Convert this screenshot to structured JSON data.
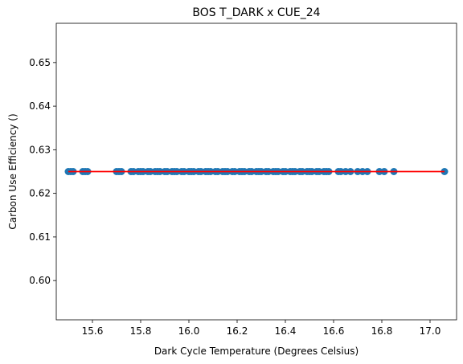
{
  "chart_data": {
    "type": "scatter",
    "title": "BOS T_DARK x CUE_24",
    "xlabel": "Dark Cycle Temperature (Degrees Celsius)",
    "ylabel": "Carbon Use Efficiency ()",
    "xlim": [
      15.45,
      17.11
    ],
    "ylim": [
      0.591,
      0.659
    ],
    "xticks": [
      15.6,
      15.8,
      16.0,
      16.2,
      16.4,
      16.6,
      16.8,
      17.0
    ],
    "xtick_labels": [
      "15.6",
      "15.8",
      "16.0",
      "16.2",
      "16.4",
      "16.6",
      "16.8",
      "17.0"
    ],
    "yticks": [
      0.6,
      0.61,
      0.62,
      0.63,
      0.64,
      0.65
    ],
    "ytick_labels": [
      "0.60",
      "0.61",
      "0.62",
      "0.63",
      "0.64",
      "0.65"
    ],
    "grid": false,
    "legend": "none",
    "colors": {
      "points": "#1f77b4",
      "fit_line": "#ff0000"
    },
    "series": [
      {
        "kind": "points",
        "x": [
          15.5,
          15.51,
          15.52,
          15.56,
          15.57,
          15.58,
          15.7,
          15.71,
          15.72,
          15.76,
          15.77,
          15.79,
          15.8,
          15.81,
          15.83,
          15.84,
          15.86,
          15.87,
          15.88,
          15.9,
          15.91,
          15.93,
          15.94,
          15.95,
          15.97,
          15.98,
          16.0,
          16.01,
          16.02,
          16.04,
          16.05,
          16.07,
          16.08,
          16.09,
          16.11,
          16.12,
          16.14,
          16.15,
          16.16,
          16.18,
          16.19,
          16.21,
          16.22,
          16.23,
          16.25,
          16.26,
          16.28,
          16.29,
          16.3,
          16.32,
          16.33,
          16.35,
          16.36,
          16.37,
          16.39,
          16.4,
          16.42,
          16.43,
          16.44,
          16.46,
          16.47,
          16.49,
          16.5,
          16.51,
          16.53,
          16.54,
          16.56,
          16.57,
          16.58,
          16.62,
          16.63,
          16.65,
          16.67,
          16.7,
          16.72,
          16.74,
          16.79,
          16.81,
          16.85,
          17.06
        ],
        "y": [
          0.625,
          0.625,
          0.625,
          0.625,
          0.625,
          0.625,
          0.625,
          0.625,
          0.625,
          0.625,
          0.625,
          0.625,
          0.625,
          0.625,
          0.625,
          0.625,
          0.625,
          0.625,
          0.625,
          0.625,
          0.625,
          0.625,
          0.625,
          0.625,
          0.625,
          0.625,
          0.625,
          0.625,
          0.625,
          0.625,
          0.625,
          0.625,
          0.625,
          0.625,
          0.625,
          0.625,
          0.625,
          0.625,
          0.625,
          0.625,
          0.625,
          0.625,
          0.625,
          0.625,
          0.625,
          0.625,
          0.625,
          0.625,
          0.625,
          0.625,
          0.625,
          0.625,
          0.625,
          0.625,
          0.625,
          0.625,
          0.625,
          0.625,
          0.625,
          0.625,
          0.625,
          0.625,
          0.625,
          0.625,
          0.625,
          0.625,
          0.625,
          0.625,
          0.625,
          0.625,
          0.625,
          0.625,
          0.625,
          0.625,
          0.625,
          0.625,
          0.625,
          0.625,
          0.625,
          0.625
        ]
      },
      {
        "kind": "fit_line",
        "x": [
          15.5,
          17.06
        ],
        "y": [
          0.625,
          0.625
        ]
      }
    ]
  }
}
